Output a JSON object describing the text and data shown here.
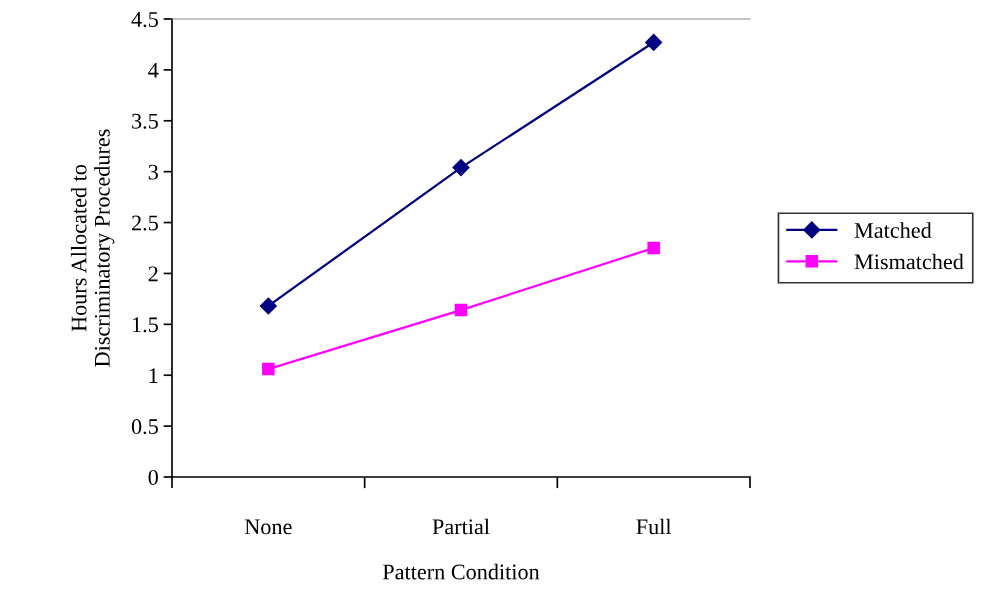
{
  "chart_data": {
    "type": "line",
    "xlabel": "Pattern Condition",
    "ylabel": "Hours Allocated to\nDiscriminatory Procedures",
    "categories": [
      "None",
      "Partial",
      "Full"
    ],
    "series": [
      {
        "name": "Matched",
        "color": "#000080",
        "marker": "diamond",
        "values": [
          1.68,
          3.04,
          4.27
        ]
      },
      {
        "name": "Mismatched",
        "color": "#ff00ff",
        "marker": "square",
        "values": [
          1.06,
          1.64,
          2.25
        ]
      }
    ],
    "ylim": [
      0,
      4.5
    ],
    "yticks": [
      0,
      0.5,
      1,
      1.5,
      2,
      2.5,
      3,
      3.5,
      4,
      4.5
    ],
    "grid": false,
    "legend": "right",
    "line_style": "solid"
  }
}
